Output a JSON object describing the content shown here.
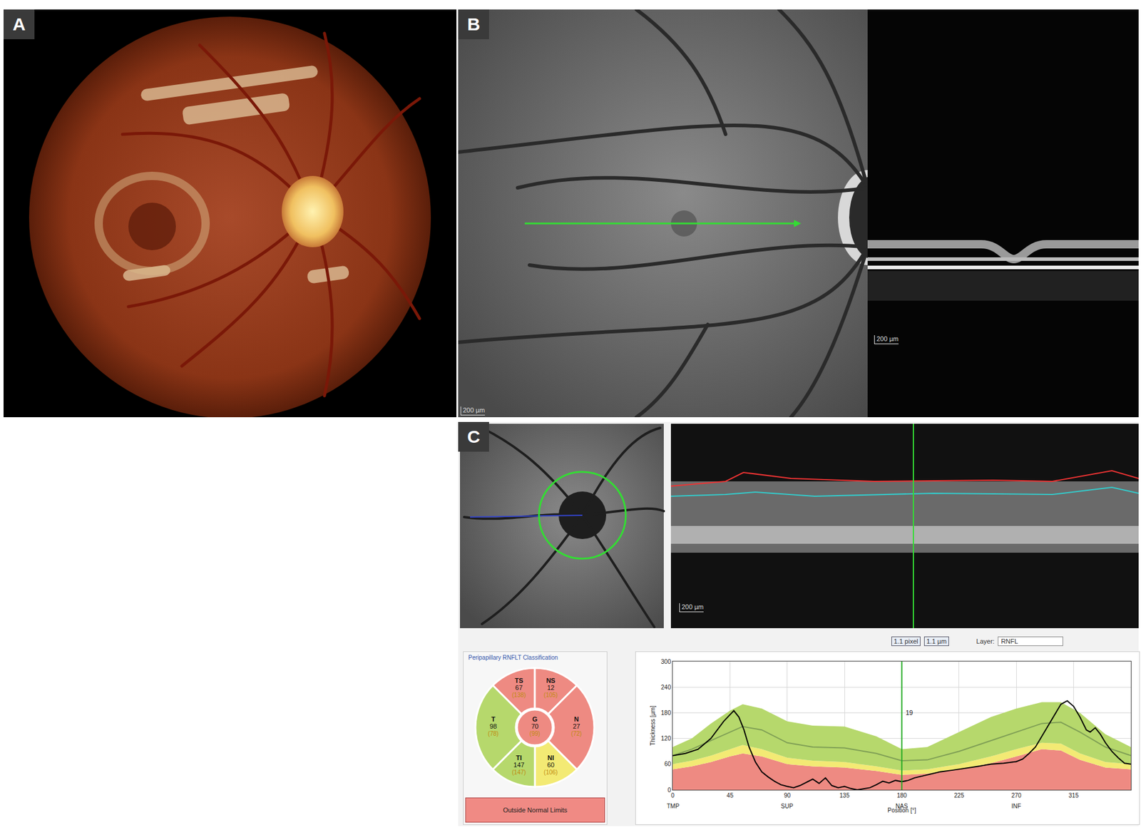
{
  "panel_labels": [
    "A",
    "B",
    "C"
  ],
  "scale_bar_label": "200 µm",
  "toolbar": {
    "values": [
      "1.1 pixel",
      "1.1 µm"
    ],
    "layer_label": "Layer:",
    "layer": "RNFL"
  },
  "classification": {
    "title": "Peripapillary RNFLT Classification",
    "result": "Outside Normal Limits",
    "sectors": [
      {
        "name": "TS",
        "value": 67,
        "normal": 138,
        "color": "#ee8a82"
      },
      {
        "name": "NS",
        "value": 12,
        "normal": 105,
        "color": "#ee8a82"
      },
      {
        "name": "N",
        "value": 27,
        "normal": 72,
        "color": "#ee8a82"
      },
      {
        "name": "NI",
        "value": 60,
        "normal": 106,
        "color": "#f3ea74"
      },
      {
        "name": "TI",
        "value": 147,
        "normal": 147,
        "color": "#b6d86c"
      },
      {
        "name": "T",
        "value": 98,
        "normal": 78,
        "color": "#b6d86c"
      },
      {
        "name": "G",
        "value": 70,
        "normal": 99,
        "color": "#ee8a82"
      }
    ]
  },
  "chart_data": {
    "type": "line",
    "x_label": "Position [°]",
    "y_label": "Thickness [µm]",
    "xlim": [
      0,
      360
    ],
    "ylim": [
      0,
      300
    ],
    "xticks": [
      0,
      45,
      90,
      135,
      180,
      225,
      270,
      315
    ],
    "yticks": [
      0,
      60,
      120,
      180,
      240,
      300
    ],
    "grid": true,
    "region_labels": [
      {
        "x": 0,
        "label": "TMP"
      },
      {
        "x": 90,
        "label": "SUP"
      },
      {
        "x": 180,
        "label": "NAS"
      },
      {
        "x": 270,
        "label": "INF"
      }
    ],
    "cursor": {
      "x": 180,
      "value": 19,
      "color": "#22aa22"
    },
    "band_x": [
      0,
      15,
      30,
      45,
      55,
      70,
      90,
      110,
      135,
      160,
      180,
      200,
      225,
      250,
      270,
      290,
      305,
      320,
      340,
      360
    ],
    "bands": [
      {
        "color": "#ee8a82",
        "values": [
          48,
          55,
          65,
          78,
          85,
          78,
          60,
          55,
          52,
          44,
          35,
          38,
          48,
          62,
          78,
          95,
          92,
          70,
          52,
          48
        ]
      },
      {
        "color": "#f3ea74",
        "values": [
          60,
          68,
          80,
          95,
          105,
          95,
          75,
          68,
          65,
          55,
          45,
          48,
          60,
          78,
          95,
          110,
          108,
          85,
          65,
          60
        ]
      },
      {
        "color": "#b6d86c",
        "values": [
          100,
          120,
          155,
          185,
          200,
          190,
          160,
          150,
          148,
          125,
          95,
          100,
          135,
          170,
          190,
          205,
          205,
          180,
          130,
          100
        ]
      }
    ],
    "series": [
      {
        "color": "#7f9f55",
        "line_style": "solid",
        "x": [
          0,
          15,
          30,
          45,
          55,
          70,
          90,
          110,
          135,
          160,
          180,
          200,
          225,
          250,
          270,
          290,
          305,
          320,
          340,
          360
        ],
        "values": [
          80,
          95,
          115,
          135,
          148,
          140,
          110,
          100,
          98,
          85,
          68,
          70,
          90,
          115,
          135,
          155,
          158,
          135,
          100,
          80
        ]
      },
      {
        "color": "#000000",
        "line_style": "solid",
        "x": [
          0,
          10,
          20,
          30,
          40,
          45,
          48,
          52,
          56,
          60,
          65,
          70,
          75,
          80,
          85,
          90,
          95,
          100,
          105,
          110,
          115,
          120,
          125,
          130,
          135,
          140,
          145,
          150,
          155,
          160,
          165,
          170,
          175,
          180,
          185,
          190,
          200,
          210,
          220,
          230,
          240,
          250,
          260,
          270,
          275,
          280,
          285,
          290,
          295,
          300,
          305,
          310,
          315,
          320,
          325,
          328,
          332,
          336,
          340,
          345,
          350,
          355,
          360
        ],
        "values": [
          80,
          85,
          95,
          120,
          160,
          175,
          185,
          170,
          140,
          100,
          65,
          42,
          30,
          20,
          12,
          8,
          5,
          10,
          18,
          25,
          15,
          28,
          10,
          5,
          8,
          3,
          0,
          2,
          5,
          12,
          20,
          16,
          22,
          19,
          22,
          28,
          35,
          42,
          46,
          50,
          55,
          60,
          62,
          66,
          72,
          85,
          100,
          125,
          150,
          175,
          200,
          208,
          195,
          170,
          140,
          135,
          145,
          130,
          110,
          90,
          75,
          62,
          60
        ]
      }
    ]
  }
}
